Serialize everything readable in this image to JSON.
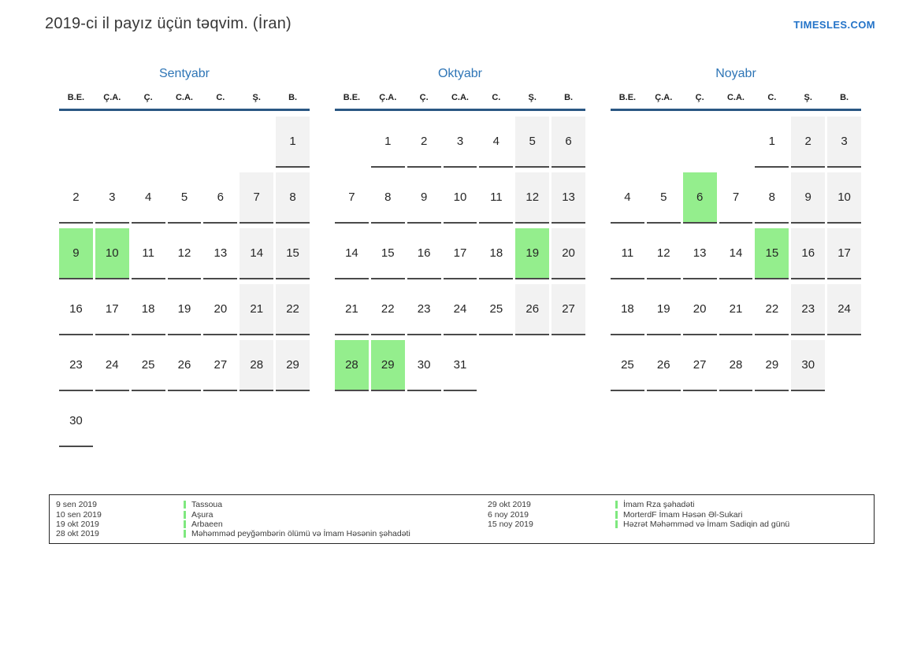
{
  "page": {
    "title": "2019-ci il payız üçün təqvim. (İran)",
    "site_link": "TIMESLES.COM"
  },
  "colors": {
    "accent_blue": "#2e75b6",
    "link_blue": "#2373c8",
    "header_line_blue": "#2a5783",
    "holiday_green": "#94ee8d",
    "legend_marker_green": "#7fe87f",
    "weekend_gray": "#f2f2f2",
    "cell_underline_gray": "#4a4a4a",
    "text_dark": "#262626"
  },
  "weekday_headers": [
    "B.E.",
    "Ç.A.",
    "Ç.",
    "C.A.",
    "C.",
    "Ş.",
    "B."
  ],
  "months": [
    {
      "name": "Sentyabr",
      "weeks": [
        [
          "",
          "",
          "",
          "",
          "",
          "",
          "1"
        ],
        [
          "2",
          "3",
          "4",
          "5",
          "6",
          "7",
          "8"
        ],
        [
          "9",
          "10",
          "11",
          "12",
          "13",
          "14",
          "15"
        ],
        [
          "16",
          "17",
          "18",
          "19",
          "20",
          "21",
          "22"
        ],
        [
          "23",
          "24",
          "25",
          "26",
          "27",
          "28",
          "29"
        ],
        [
          "30",
          "",
          "",
          "",
          "",
          "",
          ""
        ]
      ],
      "holidays": [
        9,
        10
      ]
    },
    {
      "name": "Oktyabr",
      "weeks": [
        [
          "",
          "1",
          "2",
          "3",
          "4",
          "5",
          "6"
        ],
        [
          "7",
          "8",
          "9",
          "10",
          "11",
          "12",
          "13"
        ],
        [
          "14",
          "15",
          "16",
          "17",
          "18",
          "19",
          "20"
        ],
        [
          "21",
          "22",
          "23",
          "24",
          "25",
          "26",
          "27"
        ],
        [
          "28",
          "29",
          "30",
          "31",
          "",
          "",
          ""
        ]
      ],
      "holidays": [
        19,
        28,
        29
      ]
    },
    {
      "name": "Noyabr",
      "weeks": [
        [
          "",
          "",
          "",
          "",
          "1",
          "2",
          "3"
        ],
        [
          "4",
          "5",
          "6",
          "7",
          "8",
          "9",
          "10"
        ],
        [
          "11",
          "12",
          "13",
          "14",
          "15",
          "16",
          "17"
        ],
        [
          "18",
          "19",
          "20",
          "21",
          "22",
          "23",
          "24"
        ],
        [
          "25",
          "26",
          "27",
          "28",
          "29",
          "30",
          ""
        ]
      ],
      "holidays": [
        6,
        15
      ]
    }
  ],
  "legend": {
    "columns": [
      [
        {
          "date": "9 sen 2019",
          "event": "Tassoua"
        },
        {
          "date": "10 sen 2019",
          "event": "Aşura"
        },
        {
          "date": "19 okt 2019",
          "event": "Arbaeen"
        },
        {
          "date": "28 okt 2019",
          "event": "Məhəmməd peyğəmbərin ölümü və İmam Həsənin şəhadəti"
        }
      ],
      [
        {
          "date": "29 okt 2019",
          "event": "İmam Rza şəhadəti"
        },
        {
          "date": "6 noy 2019",
          "event": "MorterdF İmam Həsən Əl-Sukari"
        },
        {
          "date": "15 noy 2019",
          "event": "Həzrət Məhəmməd və İmam Sadiqin ad günü"
        }
      ]
    ]
  }
}
